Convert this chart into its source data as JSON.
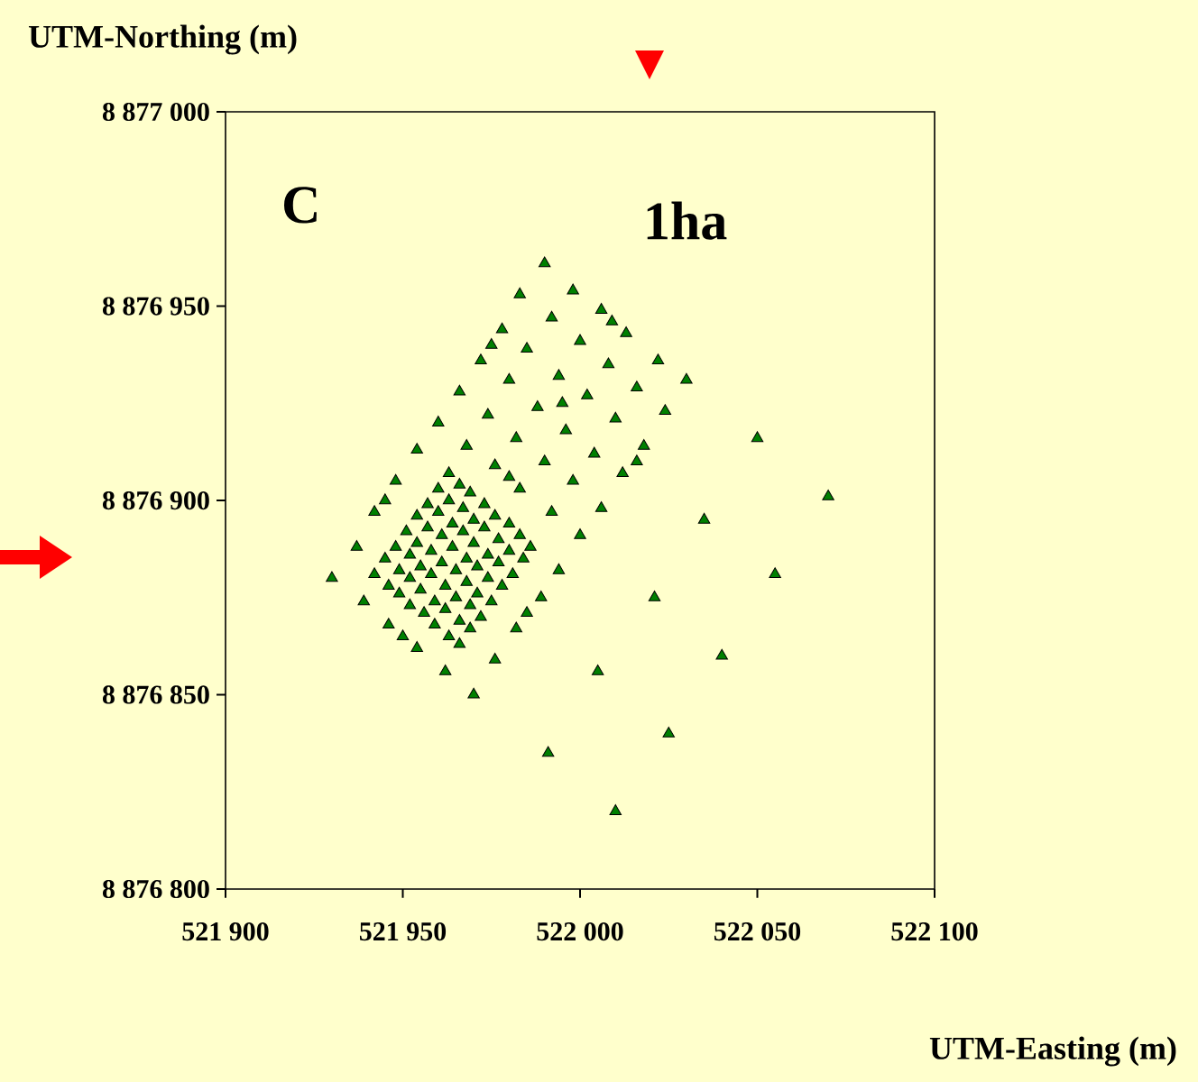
{
  "chart_data": {
    "type": "scatter",
    "xlabel": "UTM-Easting (m)",
    "ylabel": "UTM-Northing (m)",
    "annotations": [
      "C",
      "1ha"
    ],
    "marker": "triangle",
    "grid": false,
    "xlim": [
      521900,
      522100
    ],
    "ylim": [
      8876800,
      8877000
    ],
    "xticks": [
      {
        "value": 521900,
        "label": "521 900"
      },
      {
        "value": 521950,
        "label": "521 950"
      },
      {
        "value": 522000,
        "label": "522 000"
      },
      {
        "value": 522050,
        "label": "522 050"
      },
      {
        "value": 522100,
        "label": "522 100"
      }
    ],
    "yticks": [
      {
        "value": 8876800,
        "label": "8 876 800"
      },
      {
        "value": 8876850,
        "label": "8 876 850"
      },
      {
        "value": 8876900,
        "label": "8 876 900"
      },
      {
        "value": 8876950,
        "label": "8 876 950"
      },
      {
        "value": 8877000,
        "label": "8 877 000"
      }
    ],
    "series": [
      {
        "color": "#008000",
        "x": [
          521963,
          521966,
          521969,
          521973,
          521976,
          521980,
          521983,
          521986,
          521960,
          521963,
          521967,
          521970,
          521973,
          521977,
          521980,
          521984,
          521957,
          521960,
          521964,
          521967,
          521970,
          521974,
          521977,
          521981,
          521954,
          521957,
          521961,
          521964,
          521968,
          521971,
          521974,
          521978,
          521951,
          521954,
          521958,
          521961,
          521965,
          521968,
          521971,
          521975,
          521948,
          521952,
          521955,
          521958,
          521962,
          521965,
          521969,
          521972,
          521945,
          521949,
          521952,
          521955,
          521959,
          521962,
          521966,
          521969,
          521942,
          521946,
          521949,
          521952,
          521956,
          521959,
          521963,
          521966,
          521990,
          521983,
          521998,
          522006,
          522009,
          522013,
          521992,
          521978,
          521975,
          521972,
          521985,
          522000,
          522022,
          522030,
          521994,
          522008,
          521980,
          521966,
          521988,
          521995,
          522002,
          522016,
          522024,
          521960,
          521974,
          521996,
          522010,
          522050,
          521954,
          521968,
          521982,
          522004,
          522018,
          522016,
          522012,
          521990,
          521976,
          521980,
          521983,
          521998,
          521948,
          521945,
          521942,
          521937,
          521930,
          521939,
          521946,
          521950,
          521954,
          521962,
          521970,
          521976,
          521982,
          521985,
          521989,
          521994,
          522000,
          521992,
          522006,
          522005,
          522070,
          522035,
          522055,
          522021,
          522040,
          522025,
          521991,
          522010
        ],
        "values": [
          8876907,
          8876904,
          8876902,
          8876899,
          8876896,
          8876894,
          8876891,
          8876888,
          8876903,
          8876900,
          8876898,
          8876895,
          8876893,
          8876890,
          8876887,
          8876885,
          8876899,
          8876897,
          8876894,
          8876892,
          8876889,
          8876886,
          8876884,
          8876881,
          8876896,
          8876893,
          8876891,
          8876888,
          8876885,
          8876883,
          8876880,
          8876878,
          8876892,
          8876889,
          8876887,
          8876884,
          8876882,
          8876879,
          8876876,
          8876874,
          8876888,
          8876886,
          8876883,
          8876881,
          8876878,
          8876875,
          8876873,
          8876870,
          8876885,
          8876882,
          8876880,
          8876877,
          8876874,
          8876872,
          8876869,
          8876867,
          8876881,
          8876878,
          8876876,
          8876873,
          8876871,
          8876868,
          8876865,
          8876863,
          8876961,
          8876953,
          8876954,
          8876949,
          8876946,
          8876943,
          8876947,
          8876944,
          8876940,
          8876936,
          8876939,
          8876941,
          8876936,
          8876931,
          8876932,
          8876935,
          8876931,
          8876928,
          8876924,
          8876925,
          8876927,
          8876929,
          8876923,
          8876920,
          8876922,
          8876918,
          8876921,
          8876916,
          8876913,
          8876914,
          8876916,
          8876912,
          8876914,
          8876910,
          8876907,
          8876910,
          8876909,
          8876906,
          8876903,
          8876905,
          8876905,
          8876900,
          8876897,
          8876888,
          8876880,
          8876874,
          8876868,
          8876865,
          8876862,
          8876856,
          8876850,
          8876859,
          8876867,
          8876871,
          8876875,
          8876882,
          8876891,
          8876897,
          8876898,
          8876856,
          8876901,
          8876895,
          8876881,
          8876875,
          8876860,
          8876840,
          8876835,
          8876820
        ]
      }
    ]
  }
}
